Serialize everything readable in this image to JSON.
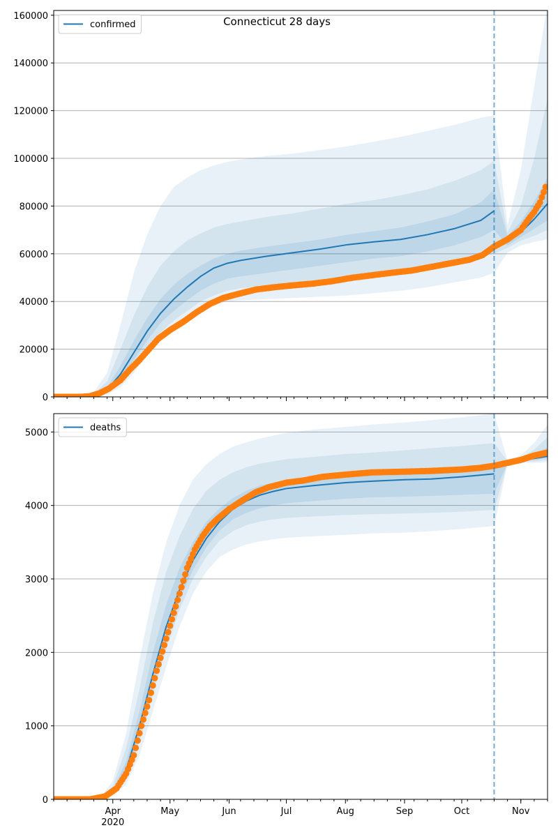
{
  "figure_title": "Connecticut 28 days",
  "colors": {
    "model": "#1f77b4",
    "observed": "#ff7f0e",
    "band": "#1f77b4",
    "grid": "#b0b0b0",
    "forecast_line": "#1f77b4"
  },
  "chart_data": [
    {
      "type": "line",
      "name": "confirmed-panel",
      "legend_label": "confirmed",
      "legend_position": "top-left",
      "grid": "y",
      "xlim": [
        "2020-03-01",
        "2020-11-15"
      ],
      "ylim": [
        0,
        162000
      ],
      "yticks": [
        0,
        20000,
        40000,
        60000,
        80000,
        100000,
        120000,
        140000,
        160000
      ],
      "forecast_start": "2020-10-18",
      "model_line": {
        "x": [
          "2020-03-01",
          "2020-03-15",
          "2020-03-22",
          "2020-03-29",
          "2020-04-05",
          "2020-04-12",
          "2020-04-19",
          "2020-04-26",
          "2020-05-03",
          "2020-05-10",
          "2020-05-17",
          "2020-05-24",
          "2020-05-31",
          "2020-06-07",
          "2020-06-21",
          "2020-07-05",
          "2020-07-19",
          "2020-08-02",
          "2020-08-16",
          "2020-08-30",
          "2020-09-13",
          "2020-09-27",
          "2020-10-11",
          "2020-10-18",
          "2020-10-25",
          "2020-11-01",
          "2020-11-08",
          "2020-11-15"
        ],
        "y": [
          0,
          0,
          500,
          3000,
          9500,
          18500,
          27500,
          35000,
          41000,
          46000,
          50500,
          54000,
          56000,
          57200,
          59000,
          60500,
          62000,
          63800,
          65000,
          66000,
          68000,
          70500,
          74000,
          78000,
          65000,
          69000,
          74500,
          81000
        ]
      },
      "band_outer": {
        "x": [
          "2020-03-01",
          "2020-03-15",
          "2020-03-22",
          "2020-03-29",
          "2020-04-05",
          "2020-04-12",
          "2020-04-19",
          "2020-04-26",
          "2020-05-03",
          "2020-05-10",
          "2020-05-17",
          "2020-05-24",
          "2020-05-31",
          "2020-06-07",
          "2020-06-21",
          "2020-07-05",
          "2020-07-19",
          "2020-08-02",
          "2020-08-16",
          "2020-08-30",
          "2020-09-13",
          "2020-09-27",
          "2020-10-11",
          "2020-10-18",
          "2020-10-25",
          "2020-11-01",
          "2020-11-08",
          "2020-11-15"
        ],
        "lo": [
          0,
          0,
          0,
          1000,
          4000,
          10000,
          18000,
          25000,
          30000,
          33000,
          36500,
          38500,
          40000,
          40500,
          41000,
          41500,
          42000,
          42500,
          43500,
          44500,
          46000,
          48000,
          50000,
          52000,
          60500,
          63500,
          65000,
          66000
        ],
        "hi": [
          0,
          0,
          2000,
          10000,
          30000,
          52000,
          68000,
          80000,
          88000,
          92000,
          95000,
          97000,
          98500,
          99500,
          101000,
          102000,
          103500,
          105000,
          107000,
          109000,
          111500,
          114000,
          117000,
          118000,
          72000,
          95000,
          130000,
          165000
        ]
      },
      "band_mid": {
        "x": [
          "2020-03-01",
          "2020-03-15",
          "2020-03-22",
          "2020-03-29",
          "2020-04-05",
          "2020-04-12",
          "2020-04-19",
          "2020-04-26",
          "2020-05-03",
          "2020-05-10",
          "2020-05-17",
          "2020-05-24",
          "2020-05-31",
          "2020-06-07",
          "2020-06-21",
          "2020-07-05",
          "2020-07-19",
          "2020-08-02",
          "2020-08-16",
          "2020-08-30",
          "2020-09-13",
          "2020-09-27",
          "2020-10-11",
          "2020-10-18",
          "2020-10-25",
          "2020-11-01",
          "2020-11-08",
          "2020-11-15"
        ],
        "lo": [
          0,
          0,
          0,
          1500,
          5500,
          12500,
          20000,
          27000,
          32000,
          36000,
          40000,
          42500,
          44500,
          45500,
          47000,
          48000,
          49000,
          50000,
          51000,
          52500,
          54000,
          56000,
          58500,
          60000,
          62500,
          65500,
          67500,
          70000
        ],
        "hi": [
          0,
          0,
          1200,
          6500,
          20000,
          34000,
          46000,
          55000,
          61000,
          65500,
          68500,
          71000,
          72500,
          73500,
          75500,
          77000,
          79000,
          81000,
          82500,
          84500,
          87000,
          90500,
          95000,
          99000,
          69000,
          80000,
          100000,
          125000
        ]
      },
      "band_inner": {
        "x": [
          "2020-03-01",
          "2020-03-15",
          "2020-03-22",
          "2020-03-29",
          "2020-04-05",
          "2020-04-12",
          "2020-04-19",
          "2020-04-26",
          "2020-05-03",
          "2020-05-10",
          "2020-05-17",
          "2020-05-24",
          "2020-05-31",
          "2020-06-07",
          "2020-06-21",
          "2020-07-05",
          "2020-07-19",
          "2020-08-02",
          "2020-08-16",
          "2020-08-30",
          "2020-09-13",
          "2020-09-27",
          "2020-10-11",
          "2020-10-18",
          "2020-10-25",
          "2020-11-01",
          "2020-11-08",
          "2020-11-15"
        ],
        "lo": [
          0,
          0,
          200,
          2200,
          7500,
          15500,
          23500,
          31000,
          36000,
          40500,
          44500,
          47500,
          49500,
          50500,
          52000,
          53500,
          55000,
          56500,
          58000,
          59000,
          61000,
          63500,
          67000,
          70000,
          63500,
          67000,
          70500,
          74000
        ],
        "hi": [
          0,
          0,
          800,
          4000,
          13000,
          23500,
          33000,
          41000,
          47000,
          51500,
          55000,
          58000,
          60000,
          61300,
          63000,
          64500,
          66000,
          68000,
          69500,
          71000,
          73500,
          76500,
          81500,
          87000,
          67500,
          73500,
          82000,
          92000
        ]
      },
      "observed": {
        "x": [
          "2020-03-01",
          "2020-03-15",
          "2020-03-20",
          "2020-03-25",
          "2020-03-30",
          "2020-04-05",
          "2020-04-10",
          "2020-04-15",
          "2020-04-20",
          "2020-04-25",
          "2020-05-01",
          "2020-05-08",
          "2020-05-15",
          "2020-05-22",
          "2020-05-29",
          "2020-06-05",
          "2020-06-15",
          "2020-06-25",
          "2020-07-05",
          "2020-07-15",
          "2020-07-25",
          "2020-08-05",
          "2020-08-15",
          "2020-08-25",
          "2020-09-05",
          "2020-09-15",
          "2020-09-25",
          "2020-10-05",
          "2020-10-12",
          "2020-10-18",
          "2020-10-25",
          "2020-11-01",
          "2020-11-05",
          "2020-11-08",
          "2020-11-11",
          "2020-11-14"
        ],
        "y": [
          0,
          0,
          300,
          1500,
          3500,
          7000,
          11500,
          15500,
          20000,
          24500,
          28000,
          31500,
          35500,
          39000,
          41500,
          43000,
          45000,
          46000,
          46800,
          47500,
          48500,
          50000,
          51000,
          52000,
          53000,
          54500,
          56000,
          57500,
          59500,
          63000,
          66000,
          70000,
          74500,
          77500,
          81500,
          88000
        ]
      }
    },
    {
      "type": "line",
      "name": "deaths-panel",
      "legend_label": "deaths",
      "legend_position": "top-left",
      "grid": "y",
      "xlim": [
        "2020-03-01",
        "2020-11-15"
      ],
      "ylim": [
        0,
        5250
      ],
      "yticks": [
        0,
        1000,
        2000,
        3000,
        4000,
        5000
      ],
      "xtick_labels": [
        "Apr",
        "May",
        "Jun",
        "Jul",
        "Aug",
        "Sep",
        "Oct",
        "Nov"
      ],
      "xtick_dates": [
        "2020-04-01",
        "2020-05-01",
        "2020-06-01",
        "2020-07-01",
        "2020-08-01",
        "2020-09-01",
        "2020-10-01",
        "2020-11-01"
      ],
      "year_label": "2020",
      "forecast_start": "2020-10-18",
      "model_line": {
        "x": [
          "2020-03-01",
          "2020-03-20",
          "2020-03-27",
          "2020-04-01",
          "2020-04-08",
          "2020-04-15",
          "2020-04-22",
          "2020-04-29",
          "2020-05-06",
          "2020-05-13",
          "2020-05-20",
          "2020-05-27",
          "2020-06-03",
          "2020-06-10",
          "2020-06-17",
          "2020-06-24",
          "2020-07-01",
          "2020-07-15",
          "2020-08-01",
          "2020-08-15",
          "2020-09-01",
          "2020-09-15",
          "2020-10-01",
          "2020-10-18",
          "2020-10-25",
          "2020-11-01",
          "2020-11-08",
          "2020-11-15"
        ],
        "y": [
          0,
          0,
          30,
          100,
          400,
          1000,
          1700,
          2350,
          2850,
          3250,
          3550,
          3780,
          3950,
          4060,
          4140,
          4190,
          4230,
          4270,
          4310,
          4330,
          4350,
          4360,
          4390,
          4430,
          4580,
          4610,
          4640,
          4670
        ]
      },
      "band_outer": {
        "x": [
          "2020-03-01",
          "2020-03-20",
          "2020-03-27",
          "2020-04-01",
          "2020-04-08",
          "2020-04-15",
          "2020-04-22",
          "2020-04-29",
          "2020-05-06",
          "2020-05-13",
          "2020-05-20",
          "2020-05-27",
          "2020-06-03",
          "2020-06-10",
          "2020-06-17",
          "2020-06-24",
          "2020-07-01",
          "2020-07-15",
          "2020-08-01",
          "2020-08-15",
          "2020-09-01",
          "2020-09-15",
          "2020-10-01",
          "2020-10-18",
          "2020-10-25",
          "2020-11-01",
          "2020-11-08",
          "2020-11-15"
        ],
        "lo": [
          0,
          0,
          10,
          50,
          200,
          600,
          1200,
          1800,
          2350,
          2800,
          3100,
          3300,
          3400,
          3470,
          3510,
          3540,
          3560,
          3580,
          3600,
          3620,
          3630,
          3650,
          3680,
          3720,
          4560,
          4580,
          4580,
          4590
        ],
        "hi": [
          0,
          0,
          80,
          250,
          900,
          1900,
          2800,
          3500,
          4000,
          4350,
          4560,
          4700,
          4800,
          4860,
          4910,
          4950,
          4990,
          5030,
          5070,
          5100,
          5130,
          5160,
          5200,
          5250,
          4610,
          4680,
          4850,
          5100
        ]
      },
      "band_mid": {
        "x": [
          "2020-03-01",
          "2020-03-20",
          "2020-03-27",
          "2020-04-01",
          "2020-04-08",
          "2020-04-15",
          "2020-04-22",
          "2020-04-29",
          "2020-05-06",
          "2020-05-13",
          "2020-05-20",
          "2020-05-27",
          "2020-06-03",
          "2020-06-10",
          "2020-06-17",
          "2020-06-24",
          "2020-07-01",
          "2020-07-15",
          "2020-08-01",
          "2020-08-15",
          "2020-09-01",
          "2020-09-15",
          "2020-10-01",
          "2020-10-18",
          "2020-10-25",
          "2020-11-01",
          "2020-11-08",
          "2020-11-15"
        ],
        "lo": [
          0,
          0,
          15,
          70,
          280,
          780,
          1420,
          2050,
          2580,
          3000,
          3300,
          3520,
          3650,
          3730,
          3780,
          3810,
          3830,
          3850,
          3870,
          3880,
          3890,
          3900,
          3915,
          3940,
          4570,
          4590,
          4600,
          4620
        ],
        "hi": [
          0,
          0,
          60,
          180,
          700,
          1500,
          2400,
          3100,
          3580,
          3950,
          4200,
          4350,
          4450,
          4520,
          4570,
          4600,
          4630,
          4660,
          4700,
          4720,
          4750,
          4780,
          4810,
          4850,
          4600,
          4650,
          4760,
          4930
        ]
      },
      "band_inner": {
        "x": [
          "2020-03-01",
          "2020-03-20",
          "2020-03-27",
          "2020-04-01",
          "2020-04-08",
          "2020-04-15",
          "2020-04-22",
          "2020-04-29",
          "2020-05-06",
          "2020-05-13",
          "2020-05-20",
          "2020-05-27",
          "2020-06-03",
          "2020-06-10",
          "2020-06-17",
          "2020-06-24",
          "2020-07-01",
          "2020-07-15",
          "2020-08-01",
          "2020-08-15",
          "2020-09-01",
          "2020-09-15",
          "2020-10-01",
          "2020-10-18",
          "2020-10-25",
          "2020-11-01",
          "2020-11-08",
          "2020-11-15"
        ],
        "lo": [
          0,
          0,
          20,
          85,
          340,
          880,
          1560,
          2200,
          2720,
          3120,
          3430,
          3660,
          3810,
          3900,
          3960,
          4000,
          4030,
          4060,
          4090,
          4110,
          4120,
          4130,
          4145,
          4160,
          4575,
          4600,
          4620,
          4645
        ],
        "hi": [
          0,
          0,
          45,
          130,
          520,
          1200,
          2000,
          2650,
          3150,
          3500,
          3780,
          3960,
          4100,
          4200,
          4270,
          4310,
          4350,
          4390,
          4430,
          4450,
          4470,
          4490,
          4520,
          4560,
          4590,
          4630,
          4700,
          4790
        ]
      },
      "observed": {
        "x": [
          "2020-03-01",
          "2020-03-20",
          "2020-03-28",
          "2020-04-03",
          "2020-04-08",
          "2020-04-12",
          "2020-04-16",
          "2020-04-20",
          "2020-04-24",
          "2020-04-28",
          "2020-05-02",
          "2020-05-06",
          "2020-05-10",
          "2020-05-14",
          "2020-05-18",
          "2020-05-22",
          "2020-05-26",
          "2020-06-01",
          "2020-06-08",
          "2020-06-15",
          "2020-06-22",
          "2020-07-01",
          "2020-07-10",
          "2020-07-20",
          "2020-08-01",
          "2020-08-15",
          "2020-09-01",
          "2020-09-15",
          "2020-10-01",
          "2020-10-10",
          "2020-10-18",
          "2020-10-25",
          "2020-11-01",
          "2020-11-08",
          "2020-11-15"
        ],
        "y": [
          0,
          0,
          40,
          150,
          350,
          600,
          1000,
          1350,
          1750,
          2100,
          2450,
          2800,
          3150,
          3400,
          3580,
          3720,
          3820,
          3950,
          4070,
          4180,
          4250,
          4310,
          4340,
          4390,
          4420,
          4450,
          4460,
          4470,
          4490,
          4510,
          4540,
          4580,
          4620,
          4680,
          4720
        ]
      }
    }
  ]
}
